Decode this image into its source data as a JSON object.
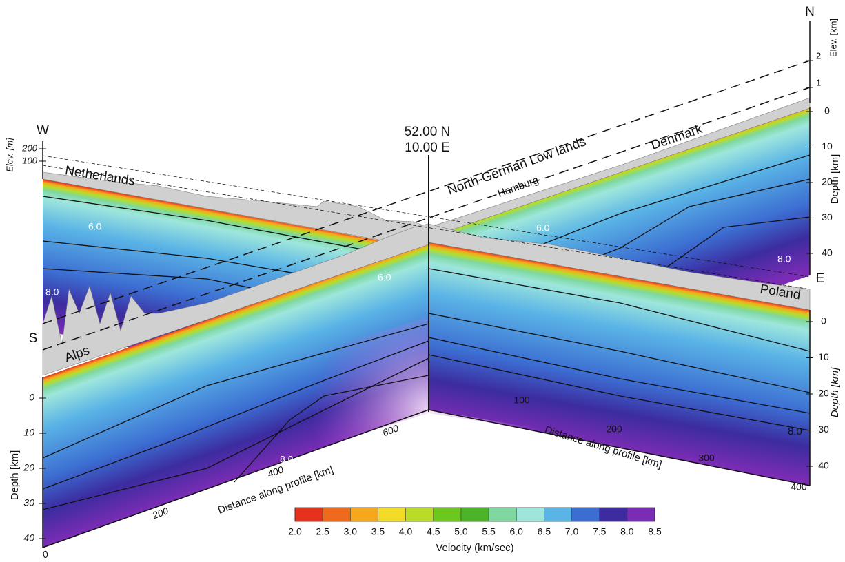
{
  "labels": {
    "north": "N",
    "south": "S",
    "west": "W",
    "east": "E",
    "center_lat": "52.00 N",
    "center_lon": "10.00 E",
    "netherlands": "Netherlands",
    "lowlands": "North-German Low lands",
    "hamburg": "Hamburg",
    "denmark": "Denmark",
    "poland": "Poland",
    "alps": "Alps"
  },
  "contour_labels": [
    "6.0",
    "6.0",
    "6.0",
    "8.0",
    "8.0",
    "8.0",
    "8.0"
  ],
  "elev_km": {
    "title": "Elev. [km]",
    "ticks": [
      "1",
      "2"
    ]
  },
  "elev_m": {
    "title": "Elev. [m]",
    "ticks": [
      "200",
      "100"
    ]
  },
  "depth_north": {
    "title": "Depth [km]",
    "ticks": [
      "0",
      "10",
      "20",
      "30",
      "40"
    ]
  },
  "depth_east": {
    "title": "Depth [km]",
    "ticks": [
      "0",
      "10",
      "20",
      "30",
      "40"
    ]
  },
  "depth_south": {
    "title": "Depth [km]",
    "ticks": [
      "0",
      "10",
      "20",
      "30",
      "40"
    ]
  },
  "distance_south": {
    "title": "Distance along profile [km]",
    "ticks": [
      "0",
      "200",
      "400",
      "600"
    ]
  },
  "distance_east": {
    "title": "Distance along profile [km]",
    "ticks": [
      "100",
      "200",
      "300",
      "400"
    ]
  },
  "colorbar": {
    "title": "Velocity (km/sec)",
    "ticks": [
      "2.0",
      "2.5",
      "3.0",
      "3.5",
      "4.0",
      "4.5",
      "5.0",
      "5.5",
      "6.0",
      "6.5",
      "7.0",
      "7.5",
      "8.0",
      "8.5"
    ],
    "colors": [
      "#e5321c",
      "#f06a1e",
      "#f5a81e",
      "#f2dc28",
      "#b8dc28",
      "#6cc81e",
      "#4cb428",
      "#7ed8a0",
      "#9ee6dc",
      "#5ab4e6",
      "#3c6ed2",
      "#3c2ca0",
      "#7a2cb4"
    ]
  }
}
